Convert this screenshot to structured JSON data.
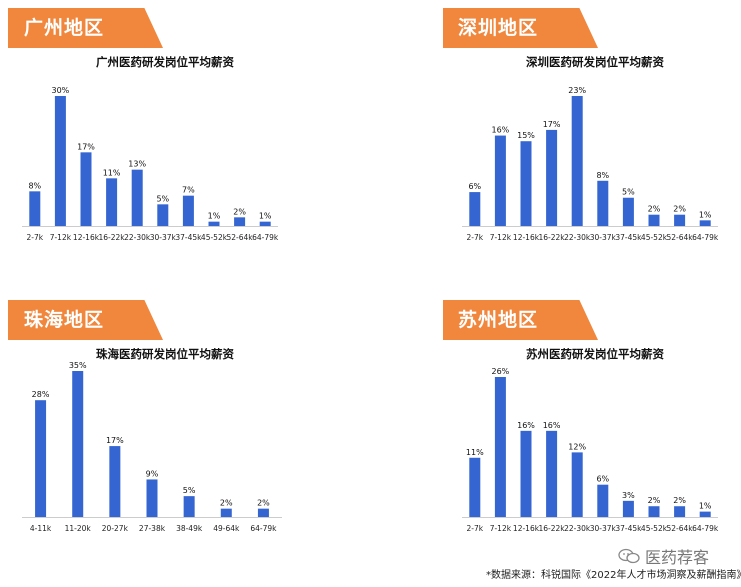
{
  "watermark": {
    "text": "医药荐客",
    "icon": "wechat-icon"
  },
  "source_note": "*数据来源：科锐国际《2022年人才市场洞察及薪酬指南》",
  "colors": {
    "bar": "#3465d0",
    "tab": "#f0873d"
  },
  "chart_data": [
    {
      "region": "广州地区",
      "type": "bar",
      "title": "广州医药研发岗位平均薪资",
      "categories": [
        "2-7k",
        "7-12k",
        "12-16k",
        "16-22k",
        "22-30k",
        "30-37k",
        "37-45k",
        "45-52k",
        "52-64k",
        "64-79k"
      ],
      "values": [
        8,
        30,
        17,
        11,
        13,
        5,
        7,
        1,
        2,
        1
      ],
      "labels": [
        "8%",
        "30%",
        "17%",
        "11%",
        "13%",
        "5%",
        "7%",
        "1%",
        "2%",
        "1%"
      ],
      "ylim": [
        0,
        30
      ]
    },
    {
      "region": "深圳地区",
      "type": "bar",
      "title": "深圳医药研发岗位平均薪资",
      "categories": [
        "2-7k",
        "7-12k",
        "12-16k",
        "16-22k",
        "22-30k",
        "30-37k",
        "37-45k",
        "45-52k",
        "52-64k",
        "64-79k"
      ],
      "values": [
        6,
        16,
        15,
        17,
        23,
        8,
        5,
        2,
        2,
        1
      ],
      "labels": [
        "6%",
        "16%",
        "15%",
        "17%",
        "23%",
        "8%",
        "5%",
        "2%",
        "2%",
        "1%"
      ],
      "ylim": [
        0,
        23
      ]
    },
    {
      "region": "珠海地区",
      "type": "bar",
      "title": "珠海医药研发岗位平均薪资",
      "categories": [
        "4-11k",
        "11-20k",
        "20-27k",
        "27-38k",
        "38-49k",
        "49-64k",
        "64-79k"
      ],
      "values": [
        28,
        35,
        17,
        9,
        5,
        2,
        2
      ],
      "labels": [
        "28%",
        "35%",
        "17%",
        "9%",
        "5%",
        "2%",
        "2%"
      ],
      "ylim": [
        0,
        35
      ]
    },
    {
      "region": "苏州地区",
      "type": "bar",
      "title": "苏州医药研发岗位平均薪资",
      "categories": [
        "2-7k",
        "7-12k",
        "12-16k",
        "16-22k",
        "22-30k",
        "30-37k",
        "37-45k",
        "45-52k",
        "52-64k",
        "64-79k"
      ],
      "values": [
        11,
        26,
        16,
        16,
        12,
        6,
        3,
        2,
        2,
        1
      ],
      "labels": [
        "11%",
        "26%",
        "16%",
        "16%",
        "12%",
        "6%",
        "3%",
        "2%",
        "2%",
        "1%"
      ],
      "ylim": [
        0,
        26
      ]
    }
  ]
}
